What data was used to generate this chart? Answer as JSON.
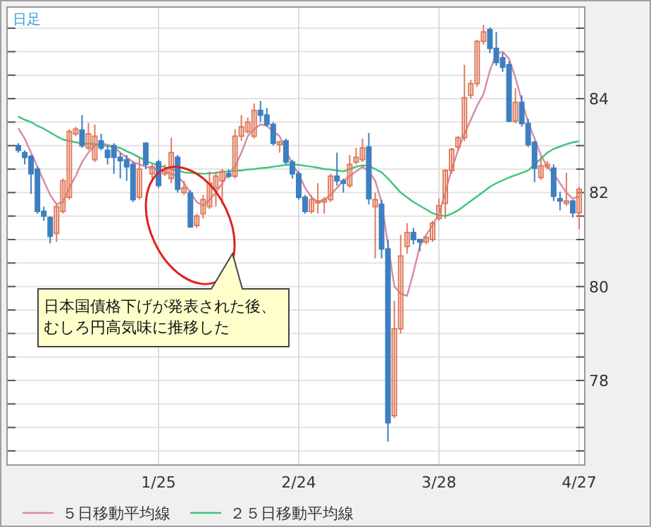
{
  "chart_data": {
    "type": "candlestick",
    "title": "日足",
    "categories": [
      null,
      null,
      null,
      null,
      null,
      null,
      null,
      null,
      null,
      null,
      null,
      null,
      null,
      null,
      null,
      null,
      null,
      null,
      null,
      null,
      null,
      null,
      "1/25",
      null,
      null,
      null,
      null,
      null,
      null,
      null,
      null,
      null,
      null,
      null,
      null,
      null,
      null,
      null,
      null,
      null,
      null,
      null,
      null,
      null,
      "2/24",
      null,
      null,
      null,
      null,
      null,
      null,
      null,
      null,
      null,
      null,
      null,
      null,
      null,
      null,
      null,
      null,
      null,
      null,
      null,
      null,
      null,
      "3/28",
      null,
      null,
      null,
      null,
      null,
      null,
      null,
      null,
      null,
      null,
      null,
      null,
      null,
      null,
      null,
      null,
      null,
      null,
      null,
      null,
      null,
      "4/27"
    ],
    "ohlc": [
      [
        83.0,
        83.05,
        82.85,
        82.9
      ],
      [
        82.85,
        82.9,
        82.6,
        82.75
      ],
      [
        82.77,
        82.8,
        81.97,
        82.4
      ],
      [
        82.5,
        82.55,
        81.55,
        81.6
      ],
      [
        81.6,
        81.7,
        81.4,
        81.5
      ],
      [
        81.47,
        81.5,
        80.92,
        81.07
      ],
      [
        81.13,
        81.75,
        80.95,
        81.7
      ],
      [
        81.6,
        82.3,
        81.55,
        82.25
      ],
      [
        81.9,
        83.35,
        81.85,
        83.3
      ],
      [
        83.25,
        83.4,
        83.2,
        83.35
      ],
      [
        83.33,
        83.65,
        82.95,
        83.0
      ],
      [
        82.95,
        83.48,
        82.9,
        83.25
      ],
      [
        82.7,
        83.45,
        82.65,
        83.2
      ],
      [
        83.1,
        83.25,
        82.9,
        82.95
      ],
      [
        82.9,
        83.0,
        82.6,
        82.75
      ],
      [
        83.0,
        83.05,
        82.4,
        82.75
      ],
      [
        82.75,
        82.85,
        82.3,
        82.68
      ],
      [
        82.7,
        82.8,
        82.25,
        82.55
      ],
      [
        82.6,
        82.65,
        81.8,
        81.85
      ],
      [
        81.9,
        82.75,
        81.85,
        82.5
      ],
      [
        83.05,
        83.07,
        82.5,
        82.6
      ],
      [
        82.4,
        82.6,
        82.3,
        82.55
      ],
      [
        82.65,
        82.7,
        82.1,
        82.15
      ],
      [
        82.4,
        82.6,
        82.35,
        82.5
      ],
      [
        82.3,
        83.17,
        82.2,
        82.85
      ],
      [
        82.75,
        82.8,
        82.0,
        82.07
      ],
      [
        82.0,
        82.25,
        81.95,
        82.1
      ],
      [
        81.99,
        82.05,
        81.25,
        81.27
      ],
      [
        81.3,
        81.55,
        81.25,
        81.5
      ],
      [
        81.55,
        81.95,
        81.45,
        81.85
      ],
      [
        81.7,
        82.45,
        81.65,
        82.2
      ],
      [
        82.1,
        82.45,
        81.7,
        82.35
      ],
      [
        82.25,
        82.5,
        81.75,
        82.45
      ],
      [
        82.4,
        82.5,
        82.3,
        82.35
      ],
      [
        82.35,
        83.35,
        82.3,
        83.2
      ],
      [
        83.2,
        83.65,
        83.1,
        83.4
      ],
      [
        83.3,
        83.6,
        83.25,
        83.5
      ],
      [
        83.2,
        83.9,
        83.15,
        83.75
      ],
      [
        83.75,
        83.95,
        83.5,
        83.65
      ],
      [
        83.65,
        83.8,
        83.4,
        83.45
      ],
      [
        83.45,
        83.5,
        83.0,
        83.05
      ],
      [
        83.02,
        83.1,
        82.85,
        83.08
      ],
      [
        83.1,
        83.15,
        82.6,
        82.65
      ],
      [
        82.65,
        82.7,
        82.3,
        82.4
      ],
      [
        82.4,
        82.45,
        81.85,
        81.9
      ],
      [
        81.9,
        81.95,
        81.55,
        81.6
      ],
      [
        81.6,
        81.95,
        81.55,
        81.85
      ],
      [
        81.78,
        82.2,
        81.55,
        81.82
      ],
      [
        81.8,
        81.9,
        81.55,
        81.85
      ],
      [
        81.85,
        82.4,
        81.8,
        82.35
      ],
      [
        82.35,
        82.85,
        82.15,
        82.25
      ],
      [
        82.25,
        82.3,
        82.0,
        82.2
      ],
      [
        82.15,
        82.8,
        82.1,
        82.6
      ],
      [
        82.65,
        82.95,
        82.6,
        82.75
      ],
      [
        82.7,
        83.15,
        82.65,
        82.95
      ],
      [
        82.97,
        83.27,
        81.75,
        81.87
      ],
      [
        81.7,
        82.0,
        80.6,
        81.85
      ],
      [
        81.75,
        81.85,
        80.6,
        80.8
      ],
      [
        80.8,
        81.0,
        76.7,
        77.1
      ],
      [
        77.25,
        79.7,
        77.2,
        79.1
      ],
      [
        79.1,
        81.1,
        79.0,
        80.65
      ],
      [
        80.85,
        81.35,
        80.7,
        81.15
      ],
      [
        81.15,
        81.25,
        80.9,
        81.0
      ],
      [
        81.0,
        81.0,
        80.75,
        80.95
      ],
      [
        80.95,
        81.05,
        80.9,
        81.05
      ],
      [
        81.0,
        81.4,
        80.95,
        81.35
      ],
      [
        81.45,
        81.87,
        81.4,
        81.72
      ],
      [
        81.77,
        82.5,
        81.45,
        82.47
      ],
      [
        82.47,
        82.95,
        82.4,
        82.92
      ],
      [
        82.97,
        83.2,
        82.9,
        83.17
      ],
      [
        83.17,
        84.72,
        83.1,
        84.02
      ],
      [
        84.07,
        84.4,
        84.0,
        84.32
      ],
      [
        84.32,
        85.25,
        84.25,
        85.22
      ],
      [
        85.22,
        85.57,
        85.15,
        85.42
      ],
      [
        85.47,
        85.52,
        84.97,
        85.07
      ],
      [
        85.07,
        85.42,
        84.7,
        84.77
      ],
      [
        84.87,
        84.97,
        84.57,
        84.67
      ],
      [
        84.72,
        84.8,
        83.5,
        83.52
      ],
      [
        83.52,
        84.22,
        83.47,
        83.92
      ],
      [
        83.92,
        84.07,
        83.4,
        83.47
      ],
      [
        83.47,
        83.57,
        82.97,
        83.02
      ],
      [
        83.07,
        83.1,
        82.22,
        82.52
      ],
      [
        82.32,
        82.77,
        82.27,
        82.57
      ],
      [
        82.55,
        82.67,
        82.5,
        82.6
      ],
      [
        82.52,
        82.6,
        81.82,
        81.92
      ],
      [
        81.87,
        82.02,
        81.62,
        81.82
      ],
      [
        81.77,
        82.42,
        81.72,
        81.82
      ],
      [
        81.82,
        81.85,
        81.47,
        81.57
      ],
      [
        81.57,
        82.12,
        81.22,
        82.07
      ]
    ],
    "colors": [
      "#3d7fc0",
      "#3d7fc0",
      "#3d7fc0",
      "#3d7fc0",
      "#3d7fc0",
      "#3d7fc0",
      "#e07a5c",
      "#e07a5c",
      "#e07a5c",
      "#e07a5c",
      "#3d7fc0",
      "#e07a5c",
      "#e07a5c",
      "#3d7fc0",
      "#3d7fc0",
      "#3d7fc0",
      "#3d7fc0",
      "#3d7fc0",
      "#3d7fc0",
      "#e07a5c",
      "#3d7fc0",
      "#e07a5c",
      "#3d7fc0",
      "#e07a5c",
      "#e07a5c",
      "#3d7fc0",
      "#e07a5c",
      "#3d7fc0",
      "#e07a5c",
      "#e07a5c",
      "#e07a5c",
      "#e07a5c",
      "#e07a5c",
      "#3d7fc0",
      "#e07a5c",
      "#e07a5c",
      "#e07a5c",
      "#e07a5c",
      "#3d7fc0",
      "#3d7fc0",
      "#3d7fc0",
      "#e07a5c",
      "#3d7fc0",
      "#3d7fc0",
      "#3d7fc0",
      "#3d7fc0",
      "#e07a5c",
      "#e07a5c",
      "#e07a5c",
      "#e07a5c",
      "#3d7fc0",
      "#3d7fc0",
      "#e07a5c",
      "#e07a5c",
      "#e07a5c",
      "#3d7fc0",
      "#e07a5c",
      "#3d7fc0",
      "#3d7fc0",
      "#e07a5c",
      "#e07a5c",
      "#e07a5c",
      "#3d7fc0",
      "#3d7fc0",
      "#e07a5c",
      "#e07a5c",
      "#e07a5c",
      "#e07a5c",
      "#e07a5c",
      "#e07a5c",
      "#e07a5c",
      "#e07a5c",
      "#e07a5c",
      "#e07a5c",
      "#3d7fc0",
      "#3d7fc0",
      "#3d7fc0",
      "#3d7fc0",
      "#e07a5c",
      "#3d7fc0",
      "#3d7fc0",
      "#3d7fc0",
      "#e07a5c",
      "#e07a5c",
      "#3d7fc0",
      "#3d7fc0",
      "#e07a5c",
      "#3d7fc0",
      "#e07a5c"
    ],
    "series": [
      {
        "name": "５日移動平均線",
        "type": "line",
        "color": "#d48aa6",
        "values": [
          83.37,
          83.15,
          82.85,
          82.55,
          82.25,
          81.95,
          81.75,
          81.8,
          82.1,
          82.35,
          82.65,
          82.85,
          83.0,
          83.05,
          83.02,
          82.97,
          82.85,
          82.75,
          82.65,
          82.6,
          82.55,
          82.52,
          82.5,
          82.45,
          82.4,
          82.35,
          82.2,
          82.0,
          81.8,
          81.72,
          81.85,
          82.0,
          82.2,
          82.4,
          82.55,
          82.85,
          83.2,
          83.35,
          83.45,
          83.42,
          83.3,
          83.2,
          82.9,
          82.6,
          82.4,
          82.1,
          81.9,
          81.8,
          81.85,
          81.95,
          82.1,
          82.25,
          82.35,
          82.45,
          82.55,
          82.45,
          82.25,
          81.8,
          80.9,
          80.0,
          79.85,
          79.8,
          80.3,
          80.85,
          81.1,
          81.3,
          81.55,
          82.0,
          82.5,
          82.9,
          83.25,
          83.55,
          83.85,
          84.1,
          84.6,
          84.95,
          85.0,
          84.85,
          84.45,
          83.95,
          83.5,
          83.15,
          82.8,
          82.55,
          82.4,
          82.2,
          82.0,
          81.87,
          81.92
        ]
      },
      {
        "name": "２５日移動平均線",
        "type": "line",
        "color": "#3cc47c",
        "values": [
          83.62,
          83.55,
          83.5,
          83.42,
          83.36,
          83.28,
          83.2,
          83.13,
          83.1,
          83.07,
          83.05,
          83.04,
          83.03,
          83.01,
          82.99,
          82.97,
          82.95,
          82.88,
          82.82,
          82.75,
          82.68,
          82.62,
          82.58,
          82.54,
          82.5,
          82.47,
          82.43,
          82.42,
          82.41,
          82.4,
          82.41,
          82.42,
          82.44,
          82.45,
          82.46,
          82.47,
          82.49,
          82.5,
          82.52,
          82.53,
          82.55,
          82.57,
          82.59,
          82.6,
          82.59,
          82.57,
          82.55,
          82.53,
          82.5,
          82.49,
          82.47,
          82.45,
          82.5,
          82.55,
          82.58,
          82.57,
          82.5,
          82.43,
          82.3,
          82.15,
          82.0,
          81.9,
          81.8,
          81.72,
          81.64,
          81.56,
          81.52,
          81.5,
          81.55,
          81.62,
          81.72,
          81.82,
          81.92,
          82.02,
          82.12,
          82.2,
          82.26,
          82.32,
          82.37,
          82.42,
          82.47,
          82.6,
          82.72,
          82.85,
          82.93,
          82.98,
          83.03,
          83.07,
          83.09
        ]
      }
    ],
    "ylim": [
      76.2,
      85.95
    ],
    "yticks": [
      {
        "value": 76.5,
        "label": null
      },
      {
        "value": 77,
        "label": null
      },
      {
        "value": 77.5,
        "label": null
      },
      78,
      {
        "value": 78.5,
        "label": null
      },
      {
        "value": 79,
        "label": null
      },
      {
        "value": 79.5,
        "label": null
      },
      80,
      {
        "value": 80.5,
        "label": null
      },
      {
        "value": 81,
        "label": null
      },
      {
        "value": 81.5,
        "label": null
      },
      82,
      {
        "value": 82.5,
        "label": null
      },
      {
        "value": 83,
        "label": null
      },
      {
        "value": 83.5,
        "label": null
      },
      84,
      {
        "value": 84.5,
        "label": null
      },
      {
        "value": 85,
        "label": null
      },
      {
        "value": 85.5,
        "label": null
      }
    ],
    "grid": true,
    "legend": "bottom",
    "annotations": [
      "日本国債格下げが発表された後、",
      "むしろ円高気味に推移した"
    ]
  }
}
